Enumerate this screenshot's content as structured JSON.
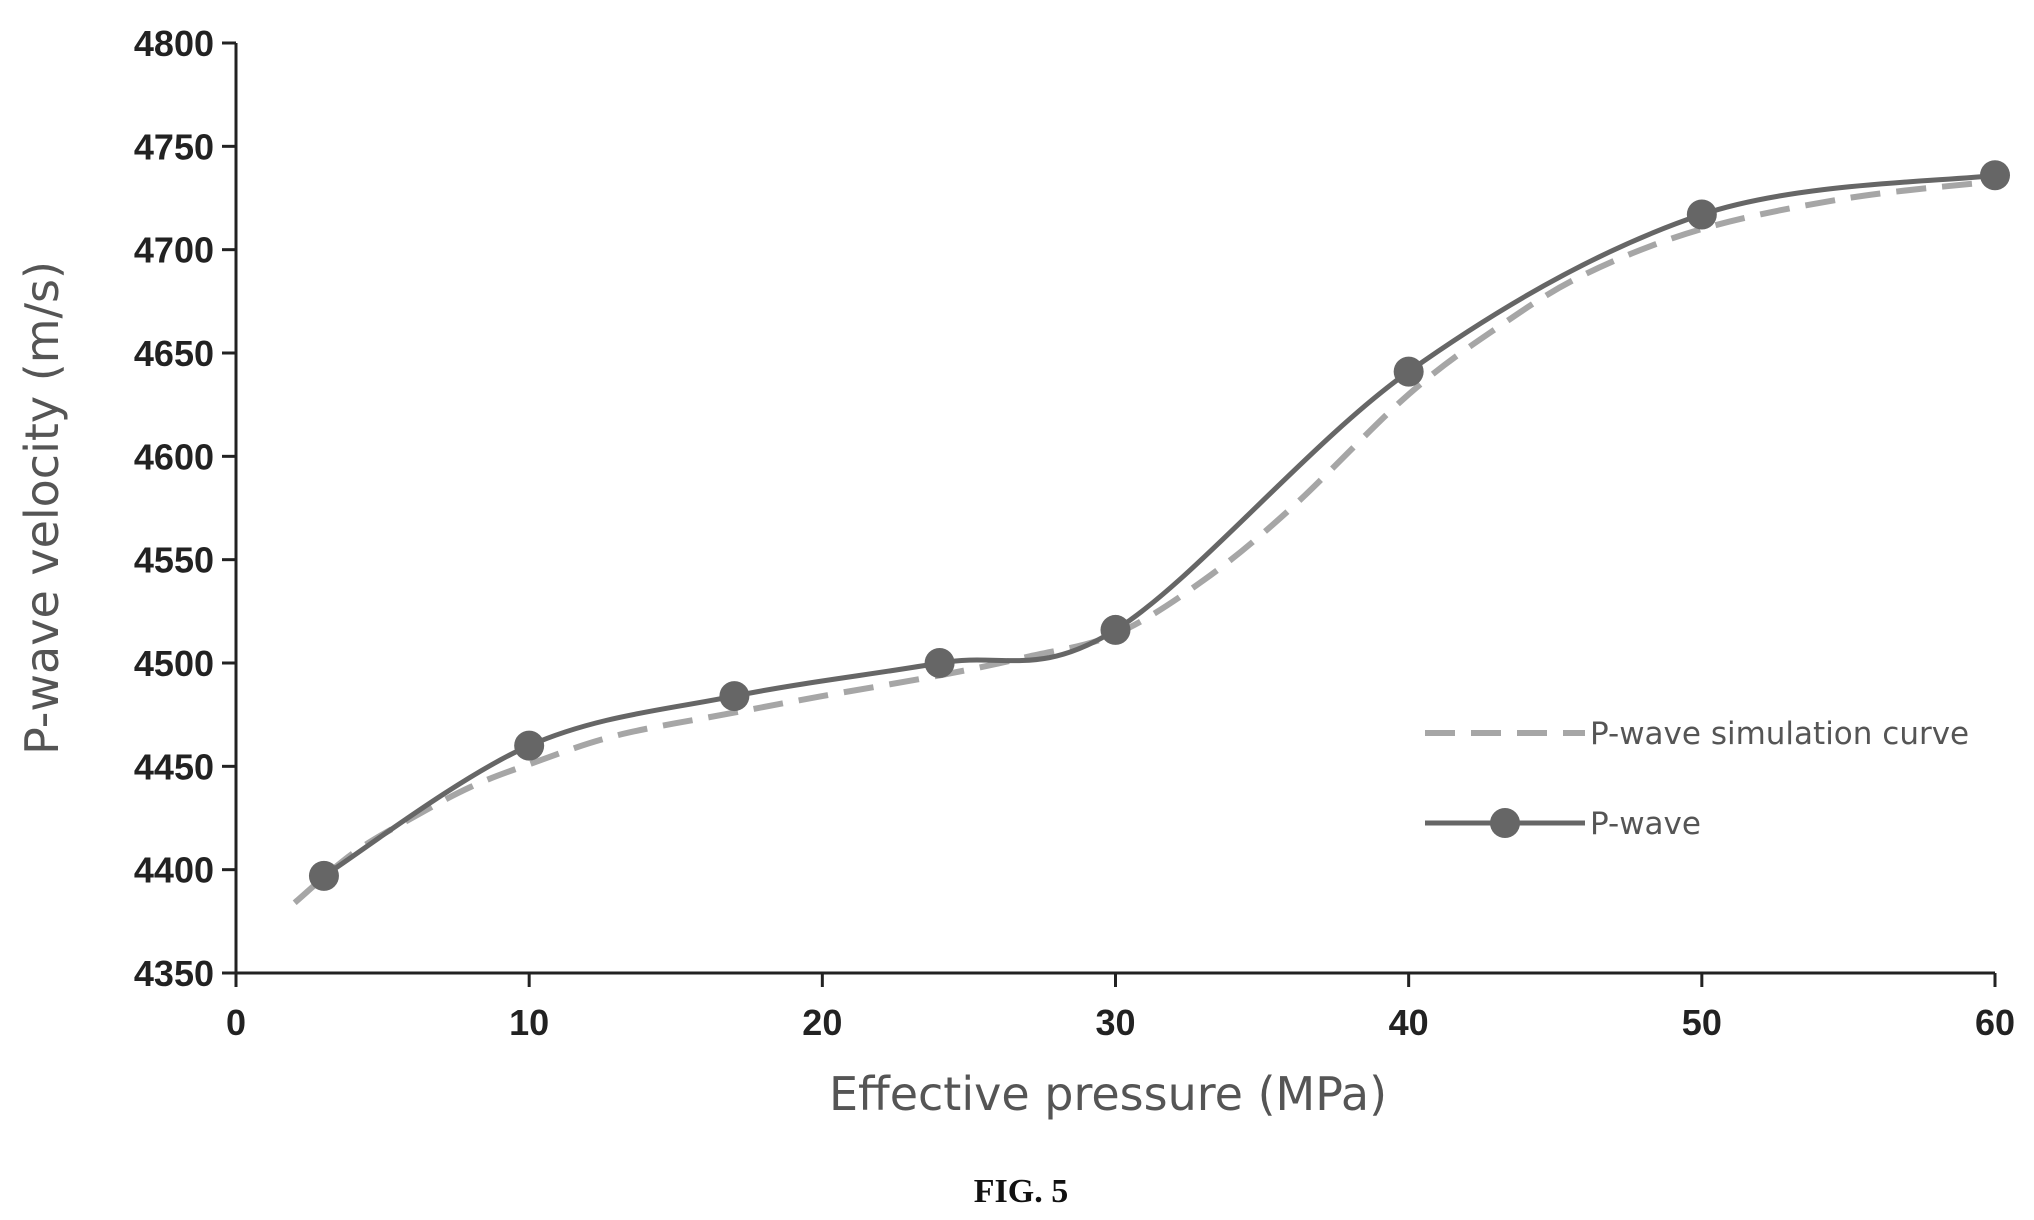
{
  "figure_caption": "FIG. 5",
  "chart_data": {
    "type": "line",
    "xlabel": "Effective pressure (MPa)",
    "ylabel": "P-wave velocity (m/s)",
    "xlim": [
      0,
      60
    ],
    "ylim": [
      4350,
      4800
    ],
    "x_ticks": [
      0,
      10,
      20,
      30,
      40,
      50,
      60
    ],
    "y_ticks": [
      4350,
      4400,
      4450,
      4500,
      4550,
      4600,
      4650,
      4700,
      4750,
      4800
    ],
    "grid": false,
    "legend_position": "right",
    "series": [
      {
        "name": "P-wave simulation curve",
        "style": "dashed",
        "color": "#a6a6a6",
        "x": [
          2,
          4,
          6,
          8,
          10,
          13,
          17,
          20,
          24,
          27,
          30,
          33,
          36,
          40,
          43,
          46,
          50,
          55,
          60
        ],
        "y": [
          4384,
          4408,
          4425,
          4440,
          4451,
          4465,
          4476,
          4484,
          4494,
          4503,
          4514,
          4540,
          4575,
          4630,
          4662,
          4688,
          4710,
          4725,
          4733
        ]
      },
      {
        "name": "P-wave",
        "style": "solid-markers",
        "color": "#666666",
        "x": [
          3,
          10,
          17,
          24,
          30,
          40,
          50,
          60
        ],
        "y": [
          4397,
          4460,
          4484,
          4500,
          4516,
          4641,
          4717,
          4736
        ]
      }
    ]
  },
  "colors": {
    "axis": "#222222",
    "text": "#555555"
  }
}
